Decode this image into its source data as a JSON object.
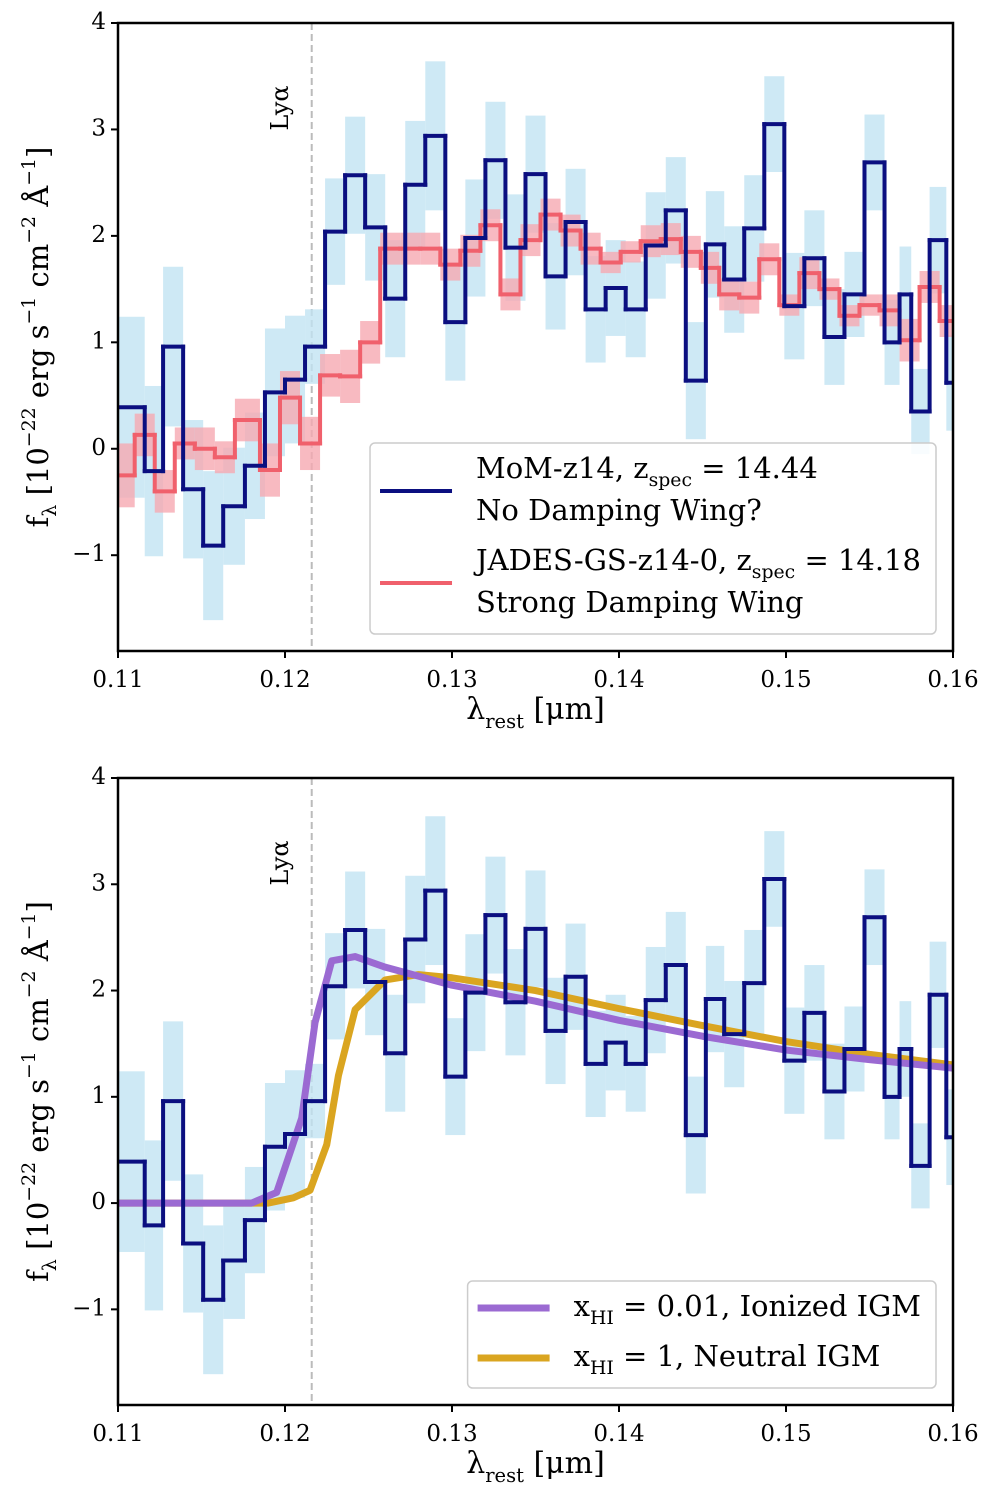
{
  "chart_data": [
    {
      "type": "step",
      "xlim": [
        0.11,
        0.16
      ],
      "xticks": [
        0.11,
        0.12,
        0.13,
        0.14,
        0.15,
        0.16
      ],
      "ylim": [
        -1.9,
        4
      ],
      "yticks": [
        {
          "value": -1,
          "label": "−1"
        },
        0,
        1,
        2,
        3,
        4
      ],
      "xlabel": [
        {
          "text": "λ"
        },
        {
          "sub": "rest"
        },
        {
          "text": " [μm]"
        }
      ],
      "ylabel": [
        {
          "text": "f"
        },
        {
          "sub": "λ"
        },
        {
          "text": " [10"
        },
        {
          "sup": "−22"
        },
        {
          "text": " erg s"
        },
        {
          "sup": "−1"
        },
        {
          "text": " cm"
        },
        {
          "sup": "−2"
        },
        {
          "text": " Å"
        },
        {
          "sup": "−1"
        },
        {
          "text": "]"
        }
      ],
      "vline": {
        "x": 0.1216,
        "label": "Lyα"
      },
      "legend": "lower right",
      "series": [
        {
          "name": [
            [
              {
                "text": "MoM-z14, "
              },
              {
                "text": "z"
              },
              {
                "sub": "spec"
              },
              {
                "text": " = 14.44"
              }
            ],
            [
              {
                "text": "No Damping Wing?"
              }
            ]
          ],
          "color": "#0b0f80",
          "band_color": "#c2e4f3",
          "type": "step",
          "bins": [
            0.1094,
            0.1116,
            0.1127,
            0.1139,
            0.1151,
            0.1163,
            0.1176,
            0.1188,
            0.12,
            0.1212,
            0.1224,
            0.1236,
            0.1248,
            0.126,
            0.1272,
            0.1284,
            0.1296,
            0.1308,
            0.132,
            0.1332,
            0.1344,
            0.1356,
            0.1368,
            0.138,
            0.1392,
            0.1404,
            0.1416,
            0.1428,
            0.144,
            0.1452,
            0.1463,
            0.1475,
            0.1487,
            0.1499,
            0.1511,
            0.1523,
            0.1535,
            0.1547,
            0.1559,
            0.1568,
            0.1575,
            0.1586,
            0.1596,
            0.1607
          ],
          "values": [
            0.39,
            -0.21,
            0.96,
            -0.38,
            -0.91,
            -0.54,
            -0.16,
            0.53,
            0.65,
            0.96,
            2.04,
            2.57,
            2.08,
            1.41,
            2.48,
            2.94,
            1.19,
            1.98,
            2.71,
            1.89,
            2.58,
            1.62,
            2.13,
            1.31,
            1.51,
            1.31,
            1.91,
            2.24,
            0.64,
            1.92,
            1.59,
            2.07,
            3.05,
            1.34,
            1.79,
            1.05,
            1.45,
            2.69,
            1.0,
            1.45,
            0.35,
            1.96,
            0.62
          ],
          "errors": [
            0.85,
            0.8,
            0.75,
            0.65,
            0.7,
            0.55,
            0.5,
            0.6,
            0.6,
            0.35,
            0.5,
            0.55,
            0.5,
            0.55,
            0.6,
            0.7,
            0.55,
            0.55,
            0.55,
            0.5,
            0.55,
            0.5,
            0.5,
            0.5,
            0.45,
            0.45,
            0.5,
            0.5,
            0.55,
            0.5,
            0.5,
            0.5,
            0.45,
            0.5,
            0.45,
            0.45,
            0.4,
            0.45,
            0.4,
            0.45,
            0.4,
            0.5,
            0.45
          ]
        },
        {
          "name": [
            [
              {
                "text": "JADES-GS-z14-0, "
              },
              {
                "text": "z"
              },
              {
                "sub": "spec"
              },
              {
                "text": " = 14.18"
              }
            ],
            [
              {
                "text": "Strong Damping Wing"
              }
            ]
          ],
          "color": "#f0606c",
          "band_color": "#f6a9b1",
          "type": "step",
          "bins": [
            0.1094,
            0.111,
            0.1122,
            0.1134,
            0.1146,
            0.1158,
            0.117,
            0.1185,
            0.1197,
            0.1209,
            0.1221,
            0.1233,
            0.1245,
            0.1257,
            0.1269,
            0.1281,
            0.1293,
            0.1305,
            0.1317,
            0.1329,
            0.1341,
            0.1353,
            0.1365,
            0.1377,
            0.1389,
            0.1401,
            0.1413,
            0.1425,
            0.1437,
            0.1449,
            0.146,
            0.1472,
            0.1484,
            0.1496,
            0.1508,
            0.152,
            0.1532,
            0.1544,
            0.1556,
            0.1568,
            0.158,
            0.1592,
            0.1607
          ],
          "values": [
            -0.25,
            0.13,
            -0.4,
            0.05,
            0.0,
            -0.08,
            0.27,
            -0.2,
            0.48,
            0.05,
            0.69,
            0.68,
            1.0,
            1.88,
            1.88,
            1.88,
            1.73,
            1.86,
            2.1,
            1.45,
            1.96,
            2.2,
            2.05,
            1.88,
            1.75,
            1.85,
            1.95,
            1.97,
            1.85,
            1.7,
            1.45,
            1.42,
            1.78,
            1.35,
            1.65,
            1.5,
            1.25,
            1.35,
            1.3,
            1.02,
            1.52,
            1.2
          ],
          "errors": [
            0.3,
            0.2,
            0.2,
            0.15,
            0.2,
            0.15,
            0.2,
            0.25,
            0.25,
            0.25,
            0.2,
            0.25,
            0.2,
            0.15,
            0.15,
            0.15,
            0.15,
            0.15,
            0.15,
            0.15,
            0.15,
            0.15,
            0.15,
            0.15,
            0.1,
            0.1,
            0.15,
            0.15,
            0.15,
            0.15,
            0.15,
            0.15,
            0.15,
            0.1,
            0.15,
            0.1,
            0.1,
            0.1,
            0.15,
            0.2,
            0.15,
            0.15
          ]
        }
      ]
    },
    {
      "type": "step",
      "xlim": [
        0.11,
        0.16
      ],
      "xticks": [
        0.11,
        0.12,
        0.13,
        0.14,
        0.15,
        0.16
      ],
      "ylim": [
        -1.9,
        4
      ],
      "yticks": [
        {
          "value": -1,
          "label": "−1"
        },
        0,
        1,
        2,
        3,
        4
      ],
      "xlabel": [
        {
          "text": "λ"
        },
        {
          "sub": "rest"
        },
        {
          "text": " [μm]"
        }
      ],
      "ylabel": [
        {
          "text": "f"
        },
        {
          "sub": "λ"
        },
        {
          "text": " [10"
        },
        {
          "sup": "−22"
        },
        {
          "text": " erg s"
        },
        {
          "sup": "−1"
        },
        {
          "text": " cm"
        },
        {
          "sup": "−2"
        },
        {
          "text": " Å"
        },
        {
          "sup": "−1"
        },
        {
          "text": "]"
        }
      ],
      "vline": {
        "x": 0.1216,
        "label": "Lyα"
      },
      "legend": "lower right",
      "series": [
        {
          "color": "#0b0f80",
          "band_color": "#c2e4f3",
          "type": "step",
          "bins": [
            0.1094,
            0.1116,
            0.1127,
            0.1139,
            0.1151,
            0.1163,
            0.1176,
            0.1188,
            0.12,
            0.1212,
            0.1224,
            0.1236,
            0.1248,
            0.126,
            0.1272,
            0.1284,
            0.1296,
            0.1308,
            0.132,
            0.1332,
            0.1344,
            0.1356,
            0.1368,
            0.138,
            0.1392,
            0.1404,
            0.1416,
            0.1428,
            0.144,
            0.1452,
            0.1463,
            0.1475,
            0.1487,
            0.1499,
            0.1511,
            0.1523,
            0.1535,
            0.1547,
            0.1559,
            0.1568,
            0.1575,
            0.1586,
            0.1596,
            0.1607
          ],
          "values": [
            0.39,
            -0.21,
            0.96,
            -0.38,
            -0.91,
            -0.54,
            -0.16,
            0.53,
            0.65,
            0.96,
            2.04,
            2.57,
            2.08,
            1.41,
            2.48,
            2.94,
            1.19,
            1.98,
            2.71,
            1.89,
            2.58,
            1.62,
            2.13,
            1.31,
            1.51,
            1.31,
            1.91,
            2.24,
            0.64,
            1.92,
            1.59,
            2.07,
            3.05,
            1.34,
            1.79,
            1.05,
            1.45,
            2.69,
            1.0,
            1.45,
            0.35,
            1.96,
            0.62
          ],
          "errors": [
            0.85,
            0.8,
            0.75,
            0.65,
            0.7,
            0.55,
            0.5,
            0.6,
            0.6,
            0.35,
            0.5,
            0.55,
            0.5,
            0.55,
            0.6,
            0.7,
            0.55,
            0.55,
            0.55,
            0.5,
            0.55,
            0.5,
            0.5,
            0.5,
            0.45,
            0.45,
            0.5,
            0.5,
            0.55,
            0.5,
            0.5,
            0.5,
            0.45,
            0.5,
            0.45,
            0.45,
            0.4,
            0.45,
            0.4,
            0.45,
            0.4,
            0.5,
            0.45
          ]
        },
        {
          "name": [
            [
              {
                "text": "x"
              },
              {
                "sub": "HI"
              },
              {
                "text": " = 0.01, Ionized IGM"
              }
            ]
          ],
          "color": "#9b6ad2",
          "type": "line",
          "x": [
            0.11,
            0.118,
            0.1195,
            0.121,
            0.1218,
            0.1228,
            0.1242,
            0.126,
            0.13,
            0.135,
            0.14,
            0.145,
            0.15,
            0.155,
            0.16
          ],
          "values": [
            0,
            0,
            0.1,
            0.8,
            1.7,
            2.28,
            2.32,
            2.22,
            2.05,
            1.9,
            1.72,
            1.57,
            1.44,
            1.35,
            1.27
          ]
        },
        {
          "name": [
            [
              {
                "text": "x"
              },
              {
                "sub": "HI"
              },
              {
                "text": " = 1, Neutral IGM"
              }
            ]
          ],
          "color": "#daa520",
          "type": "line",
          "x": [
            0.11,
            0.119,
            0.1205,
            0.1215,
            0.1225,
            0.1232,
            0.1242,
            0.126,
            0.128,
            0.13,
            0.135,
            0.14,
            0.145,
            0.15,
            0.155,
            0.16
          ],
          "values": [
            0,
            0,
            0.05,
            0.12,
            0.55,
            1.2,
            1.82,
            2.1,
            2.15,
            2.12,
            2.0,
            1.83,
            1.67,
            1.52,
            1.4,
            1.3
          ]
        }
      ]
    }
  ]
}
